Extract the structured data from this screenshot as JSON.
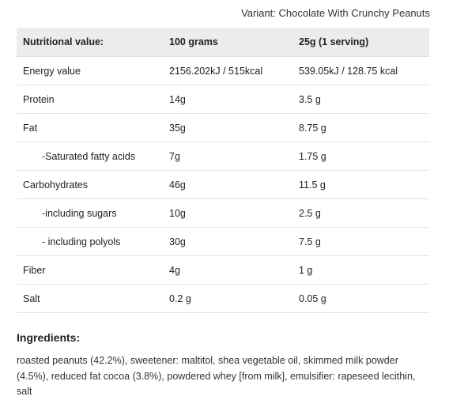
{
  "variant": "Variant: Chocolate With Crunchy Peanuts",
  "table": {
    "headers": [
      "Nutritional value:",
      "100 grams",
      "25g (1 serving)"
    ],
    "rows": [
      {
        "label": "Energy value",
        "per100": "2156.202kJ / 515kcal",
        "perServing": "539.05kJ / 128.75 kcal"
      },
      {
        "label": "Protein",
        "per100": "14g",
        "perServing": "3.5 g"
      },
      {
        "label": "Fat",
        "per100": "35g",
        "perServing": "8.75 g"
      },
      {
        "label": "-Saturated fatty acids",
        "per100": "7g",
        "perServing": "1.75 g"
      },
      {
        "label": "Carbohydrates",
        "per100": "46g",
        "perServing": "11.5 g"
      },
      {
        "label": "-including sugars",
        "per100": "10g",
        "perServing": "2.5 g"
      },
      {
        "label": "- including polyols",
        "per100": "30g",
        "perServing": "7.5 g"
      },
      {
        "label": "Fiber",
        "per100": "4g",
        "perServing": "1 g"
      },
      {
        "label": "Salt",
        "per100": "0.2 g",
        "perServing": "0.05 g"
      }
    ]
  },
  "ingredients": {
    "title": "Ingredients:",
    "text": "roasted peanuts (42.2%), sweetener: maltitol, shea vegetable oil, skimmed milk powder (4.5%), reduced fat cocoa (3.8%), powdered whey [from milk], emulsifier: rapeseed lecithin, salt"
  }
}
